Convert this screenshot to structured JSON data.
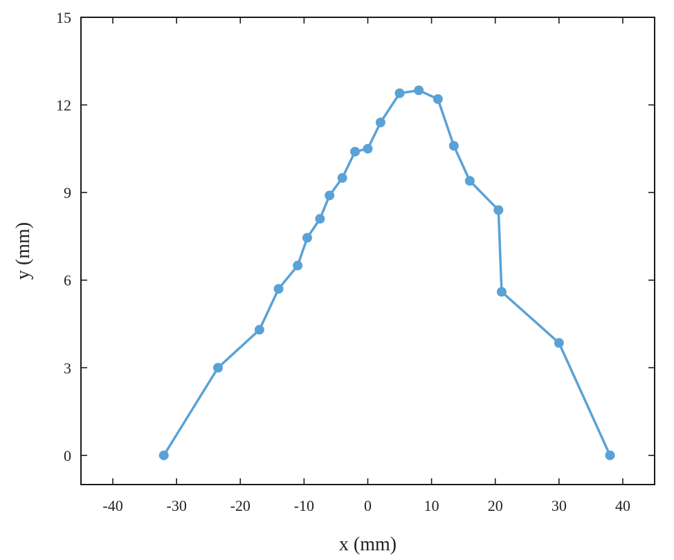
{
  "chart_data": {
    "type": "line",
    "title": "",
    "xlabel": "x (mm)",
    "ylabel": "y (mm)",
    "xlim": [
      -45,
      45
    ],
    "ylim": [
      -1,
      15
    ],
    "xticks": [
      -40,
      -30,
      -20,
      -10,
      0,
      10,
      20,
      30,
      40
    ],
    "yticks": [
      0,
      3,
      6,
      9,
      12,
      15
    ],
    "x_tick_labels": [
      "-40",
      "-30",
      "-20",
      "-10",
      "0",
      "10",
      "20",
      "30",
      "40"
    ],
    "y_tick_labels": [
      "0",
      "3",
      "6",
      "9",
      "12",
      "15"
    ],
    "grid": false,
    "series": [
      {
        "name": "profile",
        "color": "#5aa2d6",
        "x": [
          -32,
          -23.5,
          -17,
          -14,
          -11,
          -9.5,
          -7.5,
          -6,
          -4,
          -2,
          0,
          2,
          5,
          8,
          11,
          13.5,
          16,
          20.5,
          21,
          30,
          38
        ],
        "y": [
          0,
          3,
          4.3,
          5.7,
          6.5,
          7.45,
          8.1,
          8.9,
          9.5,
          10.4,
          10.5,
          11.4,
          12.4,
          12.5,
          12.2,
          10.6,
          9.4,
          8.4,
          5.6,
          3.85,
          0
        ]
      }
    ]
  }
}
